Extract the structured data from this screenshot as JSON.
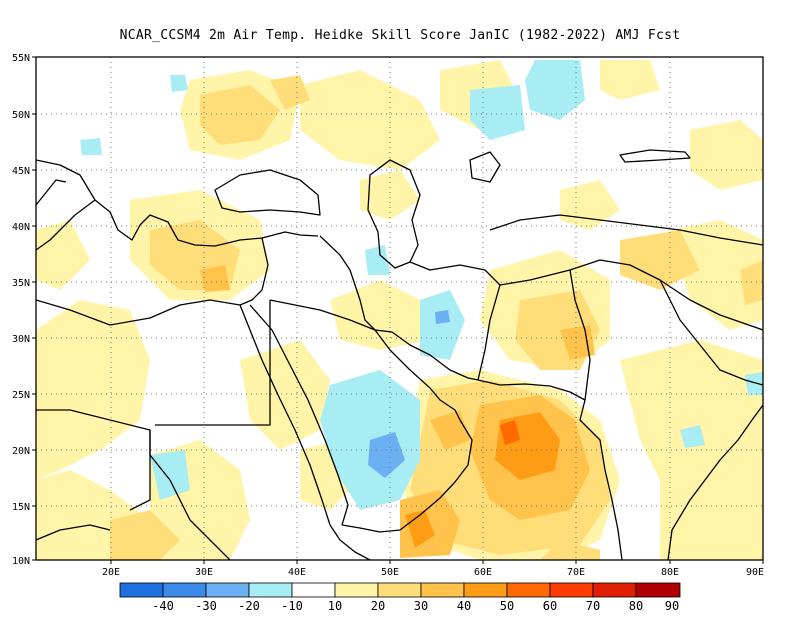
{
  "title": "NCAR_CCSM4  2m Air Temp. Heidke Skill Score JanIC (1982-2022) AMJ Fcst",
  "map": {
    "lon_range": [
      12,
      90
    ],
    "lat_range": [
      10,
      55
    ],
    "lat_ticks": [
      "10N",
      "15N",
      "20N",
      "25N",
      "30N",
      "35N",
      "40N",
      "45N",
      "50N",
      "55N"
    ],
    "lon_ticks": [
      "20E",
      "30E",
      "40E",
      "50E",
      "60E",
      "70E",
      "80E",
      "90E"
    ],
    "gridlines": "dotted"
  },
  "colorbar": {
    "colors": [
      "#1e6fe0",
      "#3b8ae8",
      "#6cb0f4",
      "#a8ecf4",
      "#ffffff",
      "#fff4a8",
      "#ffde7a",
      "#ffc24a",
      "#ff9c16",
      "#ff6a00",
      "#ff3c00",
      "#e01e00",
      "#b00000"
    ],
    "labels": [
      "-40",
      "-30",
      "-20",
      "-10",
      "10",
      "20",
      "30",
      "40",
      "50",
      "60",
      "70",
      "80",
      "90"
    ]
  }
}
